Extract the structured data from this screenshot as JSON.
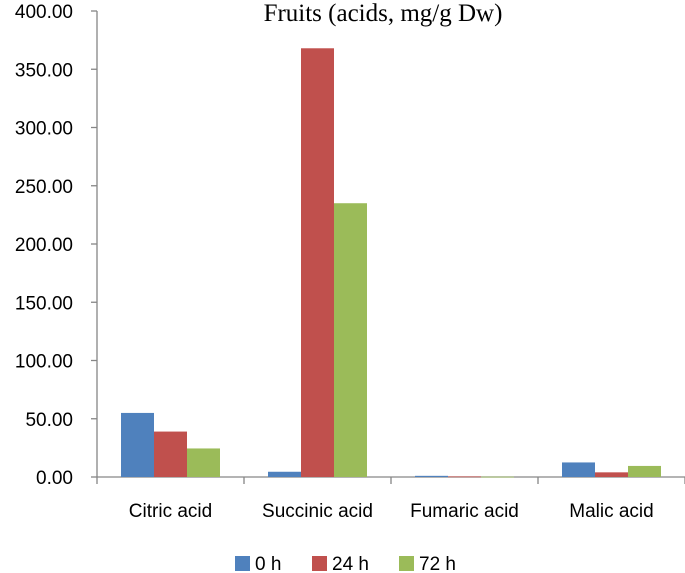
{
  "chart_data": {
    "type": "bar",
    "title": "Fruits (acids, mg/g Dw)",
    "xlabel": "",
    "ylabel": "",
    "categories": [
      "Citric acid",
      "Succinic acid",
      "Fumaric acid",
      "Malic acid"
    ],
    "series": [
      {
        "name": "0 h",
        "color": "#4f81bd",
        "values": [
          55.0,
          4.5,
          1.0,
          12.5
        ]
      },
      {
        "name": "24 h",
        "color": "#c0504d",
        "values": [
          39.0,
          368.0,
          0.5,
          4.0
        ]
      },
      {
        "name": "72 h",
        "color": "#9bbb59",
        "values": [
          24.5,
          235.0,
          0.3,
          9.5
        ]
      }
    ],
    "ylim": [
      0,
      400
    ],
    "yticks": [
      "0.00",
      "50.00",
      "100.00",
      "150.00",
      "200.00",
      "250.00",
      "300.00",
      "350.00",
      "400.00"
    ],
    "grid": false,
    "legend_position": "bottom"
  }
}
